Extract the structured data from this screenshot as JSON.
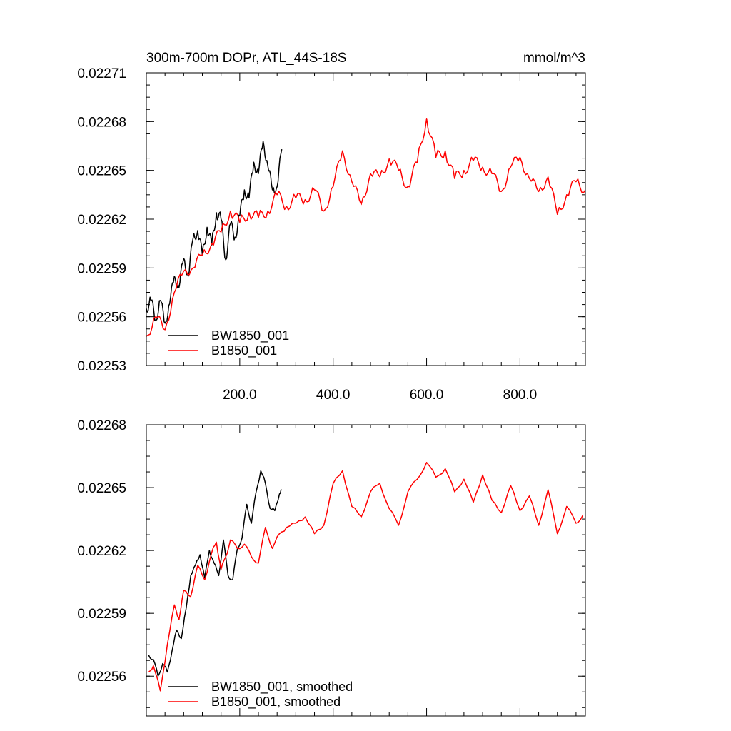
{
  "chart_data": [
    {
      "type": "line",
      "title": "300m-700m DOPr, ATL_44S-18S",
      "units": "mmol/m^3",
      "xlim": [
        0,
        940
      ],
      "ylim": [
        0.02253,
        0.02271
      ],
      "xticks": [
        200,
        400,
        600,
        800
      ],
      "xtick_labels": [
        "200.0",
        "400.0",
        "600.0",
        "800.0"
      ],
      "yticks": [
        0.02253,
        0.02256,
        0.02259,
        0.02262,
        0.02265,
        0.02268,
        0.02271
      ],
      "ytick_labels": [
        "0.02253",
        "0.02256",
        "0.02259",
        "0.02262",
        "0.02265",
        "0.02268",
        "0.02271"
      ],
      "legend_position": "bottom-left",
      "series": [
        {
          "name": "BW1850_001",
          "color": "#000000",
          "x": [
            0,
            10,
            20,
            30,
            40,
            50,
            60,
            70,
            80,
            90,
            100,
            110,
            120,
            130,
            140,
            150,
            160,
            170,
            180,
            190,
            200,
            210,
            220,
            230,
            240,
            250,
            260,
            270,
            280,
            290
          ],
          "values": [
            0.022565,
            0.02257,
            0.022558,
            0.02257,
            0.022556,
            0.022568,
            0.022585,
            0.022578,
            0.022596,
            0.022585,
            0.022608,
            0.022613,
            0.022598,
            0.022615,
            0.022604,
            0.022624,
            0.02262,
            0.022595,
            0.022617,
            0.022609,
            0.022622,
            0.022638,
            0.022633,
            0.022655,
            0.022648,
            0.022668,
            0.022653,
            0.022638,
            0.02264,
            0.022663
          ]
        },
        {
          "name": "B1850_001",
          "color": "#ff0000",
          "x": [
            0,
            20,
            40,
            60,
            80,
            100,
            120,
            140,
            160,
            180,
            200,
            220,
            240,
            260,
            280,
            300,
            320,
            340,
            360,
            380,
            400,
            420,
            440,
            460,
            480,
            500,
            520,
            540,
            560,
            580,
            600,
            620,
            640,
            660,
            680,
            700,
            720,
            740,
            760,
            780,
            800,
            820,
            840,
            860,
            880,
            900,
            920,
            940
          ],
          "values": [
            0.022548,
            0.02256,
            0.022552,
            0.022575,
            0.022588,
            0.02259,
            0.022598,
            0.022605,
            0.022612,
            0.022625,
            0.022618,
            0.022624,
            0.022621,
            0.022625,
            0.022635,
            0.022628,
            0.022633,
            0.022632,
            0.022638,
            0.022625,
            0.02264,
            0.022662,
            0.022643,
            0.022629,
            0.022648,
            0.022646,
            0.022657,
            0.02265,
            0.02264,
            0.022655,
            0.022682,
            0.022658,
            0.022662,
            0.022645,
            0.02265,
            0.022656,
            0.022652,
            0.022648,
            0.022637,
            0.022652,
            0.022658,
            0.022645,
            0.022637,
            0.022646,
            0.022623,
            0.022635,
            0.022643,
            0.022638
          ]
        }
      ]
    },
    {
      "type": "line",
      "title": "",
      "xlim": [
        0,
        940
      ],
      "ylim": [
        0.022541,
        0.02268
      ],
      "yticks": [
        0.02256,
        0.02259,
        0.02262,
        0.02265,
        0.02268
      ],
      "ytick_labels": [
        "0.02256",
        "0.02259",
        "0.02262",
        "0.02265",
        "0.02268"
      ],
      "xticks": [
        200,
        400,
        600,
        800
      ],
      "legend_position": "bottom-left",
      "series": [
        {
          "name": "BW1850_001, smoothed",
          "color": "#000000",
          "x": [
            5,
            15,
            25,
            35,
            45,
            55,
            65,
            75,
            85,
            95,
            105,
            115,
            125,
            135,
            145,
            155,
            165,
            175,
            185,
            195,
            205,
            215,
            225,
            235,
            245,
            255,
            265,
            275,
            285,
            290
          ],
          "values": [
            0.02257,
            0.022568,
            0.02256,
            0.022566,
            0.022562,
            0.022572,
            0.022582,
            0.022578,
            0.022592,
            0.022608,
            0.022613,
            0.022618,
            0.022607,
            0.02262,
            0.022614,
            0.022608,
            0.022625,
            0.022608,
            0.022606,
            0.022621,
            0.022626,
            0.022642,
            0.022633,
            0.022648,
            0.022658,
            0.022652,
            0.02264,
            0.022639,
            0.022647,
            0.022649
          ]
        },
        {
          "name": "B1850_001, smoothed",
          "color": "#ff0000",
          "x": [
            5,
            15,
            30,
            45,
            60,
            70,
            80,
            95,
            110,
            125,
            140,
            150,
            160,
            170,
            180,
            195,
            210,
            225,
            240,
            255,
            270,
            285,
            300,
            320,
            340,
            360,
            380,
            400,
            420,
            440,
            460,
            480,
            500,
            520,
            540,
            560,
            580,
            600,
            620,
            640,
            660,
            680,
            700,
            720,
            740,
            760,
            780,
            800,
            820,
            840,
            860,
            880,
            900,
            920,
            935
          ],
          "values": [
            0.022562,
            0.022565,
            0.022553,
            0.022575,
            0.022594,
            0.022587,
            0.022601,
            0.022598,
            0.022613,
            0.022606,
            0.022619,
            0.022624,
            0.022611,
            0.022617,
            0.022625,
            0.022621,
            0.022623,
            0.022617,
            0.022614,
            0.022631,
            0.022621,
            0.022628,
            0.022631,
            0.022633,
            0.022636,
            0.022628,
            0.022632,
            0.022652,
            0.022658,
            0.022641,
            0.022636,
            0.022648,
            0.022652,
            0.02264,
            0.022632,
            0.022648,
            0.022654,
            0.022662,
            0.022655,
            0.022659,
            0.022648,
            0.022654,
            0.022643,
            0.022656,
            0.022644,
            0.022638,
            0.022651,
            0.022639,
            0.022646,
            0.022632,
            0.022649,
            0.022628,
            0.022641,
            0.022633,
            0.022637
          ]
        }
      ]
    }
  ]
}
